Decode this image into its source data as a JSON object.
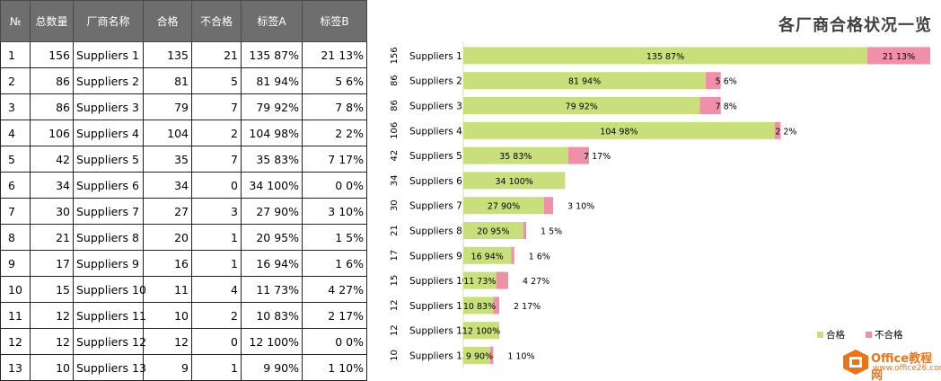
{
  "table": {
    "headers": [
      "№",
      "总数量",
      "厂商名称",
      "合格",
      "不合格",
      "标签A",
      "标签B"
    ],
    "rows": [
      [
        "1",
        "156",
        "Suppliers 1",
        "135",
        "21",
        "135  87%",
        "21  13%"
      ],
      [
        "2",
        "86",
        "Suppliers 2",
        "81",
        "5",
        "81  94%",
        "5  6%"
      ],
      [
        "3",
        "86",
        "Suppliers 3",
        "79",
        "7",
        "79  92%",
        "7  8%"
      ],
      [
        "4",
        "106",
        "Suppliers 4",
        "104",
        "2",
        "104  98%",
        "2  2%"
      ],
      [
        "5",
        "42",
        "Suppliers 5",
        "35",
        "7",
        "35  83%",
        "7  17%"
      ],
      [
        "6",
        "34",
        "Suppliers 6",
        "34",
        "0",
        "34  100%",
        "0  0%"
      ],
      [
        "7",
        "30",
        "Suppliers 7",
        "27",
        "3",
        "27  90%",
        "3  10%"
      ],
      [
        "8",
        "21",
        "Suppliers 8",
        "20",
        "1",
        "20  95%",
        "1  5%"
      ],
      [
        "9",
        "17",
        "Suppliers 9",
        "16",
        "1",
        "16  94%",
        "1  6%"
      ],
      [
        "10",
        "15",
        "Suppliers 10",
        "11",
        "4",
        "11  73%",
        "4  27%"
      ],
      [
        "11",
        "12",
        "Suppliers 11",
        "10",
        "2",
        "10  83%",
        "2  17%"
      ],
      [
        "12",
        "12",
        "Suppliers 12",
        "12",
        "0",
        "12  100%",
        "0  0%"
      ],
      [
        "13",
        "10",
        "Suppliers 13",
        "9",
        "1",
        "9  90%",
        "1  10%"
      ]
    ]
  },
  "chart_data": {
    "type": "bar",
    "orientation": "horizontal",
    "stacked": true,
    "title": "各厂商合格状况一览",
    "categories": [
      "Suppliers 1",
      "Suppliers 2",
      "Suppliers 3",
      "Suppliers 4",
      "Suppliers 5",
      "Suppliers 6",
      "Suppliers 7",
      "Suppliers 8",
      "Suppliers 9",
      "Suppliers 10",
      "Suppliers 11",
      "Suppliers 12",
      "Suppliers 13"
    ],
    "totals": [
      156,
      86,
      86,
      106,
      42,
      34,
      30,
      21,
      17,
      15,
      12,
      12,
      10
    ],
    "series": [
      {
        "name": "合格",
        "color": "#c9df7b",
        "values": [
          135,
          81,
          79,
          104,
          35,
          34,
          27,
          20,
          16,
          11,
          10,
          12,
          9
        ],
        "labels": [
          "135  87%",
          "81  94%",
          "79  92%",
          "104  98%",
          "35  83%",
          "34  100%",
          "27  90%",
          "20  95%",
          "16  94%",
          "11  73%",
          "10  83%",
          "12  100%",
          "9  90%"
        ]
      },
      {
        "name": "不合格",
        "color": "#f08fa8",
        "values": [
          21,
          5,
          7,
          2,
          7,
          0,
          3,
          1,
          1,
          4,
          2,
          0,
          1
        ],
        "labels": [
          "21  13%",
          "5  6%",
          "7  8%",
          "2  2%",
          "7  17%",
          "",
          "3  10%",
          "1  5%",
          "1  6%",
          "4  27%",
          "2  17%",
          "",
          "1  10%"
        ]
      }
    ],
    "xlim": [
      0,
      156
    ],
    "legend": "bottom-right",
    "grid": false
  },
  "logo": {
    "line1": "Office教程网",
    "line2": "www.office26.com"
  }
}
